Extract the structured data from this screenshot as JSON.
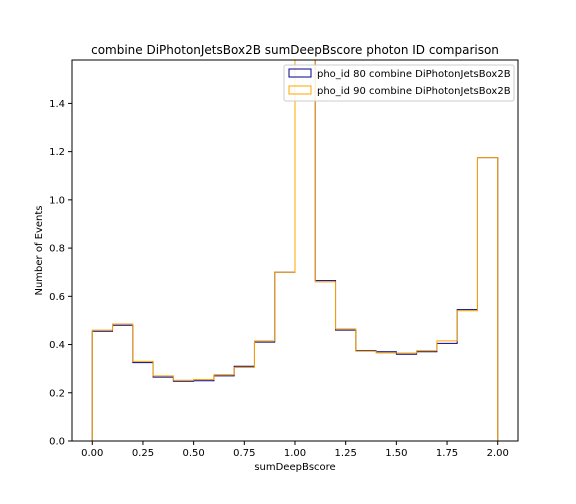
{
  "chart_data": {
    "type": "step-histogram",
    "title": "combine DiPhotonJetsBox2B sumDeepBscore photon ID comparison",
    "xlabel": "sumDeepBscore",
    "ylabel": "Number of Events",
    "xlim": [
      -0.1,
      2.1
    ],
    "ylim": [
      0,
      1.58
    ],
    "xticks": [
      0.0,
      0.25,
      0.5,
      0.75,
      1.0,
      1.25,
      1.5,
      1.75,
      2.0
    ],
    "xtick_labels": [
      "0.00",
      "0.25",
      "0.50",
      "0.75",
      "1.00",
      "1.25",
      "1.50",
      "1.75",
      "2.00"
    ],
    "yticks": [
      0.0,
      0.2,
      0.4,
      0.6,
      0.8,
      1.0,
      1.2,
      1.4
    ],
    "ytick_labels": [
      "0.0",
      "0.2",
      "0.4",
      "0.6",
      "0.8",
      "1.0",
      "1.2",
      "1.4"
    ],
    "bin_edges": [
      0.0,
      0.1,
      0.2,
      0.3,
      0.4,
      0.5,
      0.6,
      0.7,
      0.8,
      0.9,
      1.0,
      1.1,
      1.2,
      1.3,
      1.4,
      1.5,
      1.6,
      1.7,
      1.8,
      1.9,
      2.0
    ],
    "legend_position": "top-right",
    "series": [
      {
        "name": "pho_id 80 combine DiPhotonJetsBox2B",
        "color": "#00008b",
        "values": [
          0.455,
          0.48,
          0.325,
          0.265,
          0.248,
          0.25,
          0.27,
          0.31,
          0.41,
          0.7,
          1.6,
          0.665,
          0.46,
          0.375,
          0.37,
          0.36,
          0.37,
          0.405,
          0.545,
          1.175
        ]
      },
      {
        "name": "pho_id 90 combine DiPhotonJetsBox2B",
        "color": "#ffa500",
        "values": [
          0.46,
          0.485,
          0.33,
          0.27,
          0.252,
          0.255,
          0.275,
          0.305,
          0.415,
          0.7,
          1.6,
          0.66,
          0.465,
          0.372,
          0.365,
          0.365,
          0.375,
          0.415,
          0.54,
          1.175
        ]
      }
    ]
  }
}
